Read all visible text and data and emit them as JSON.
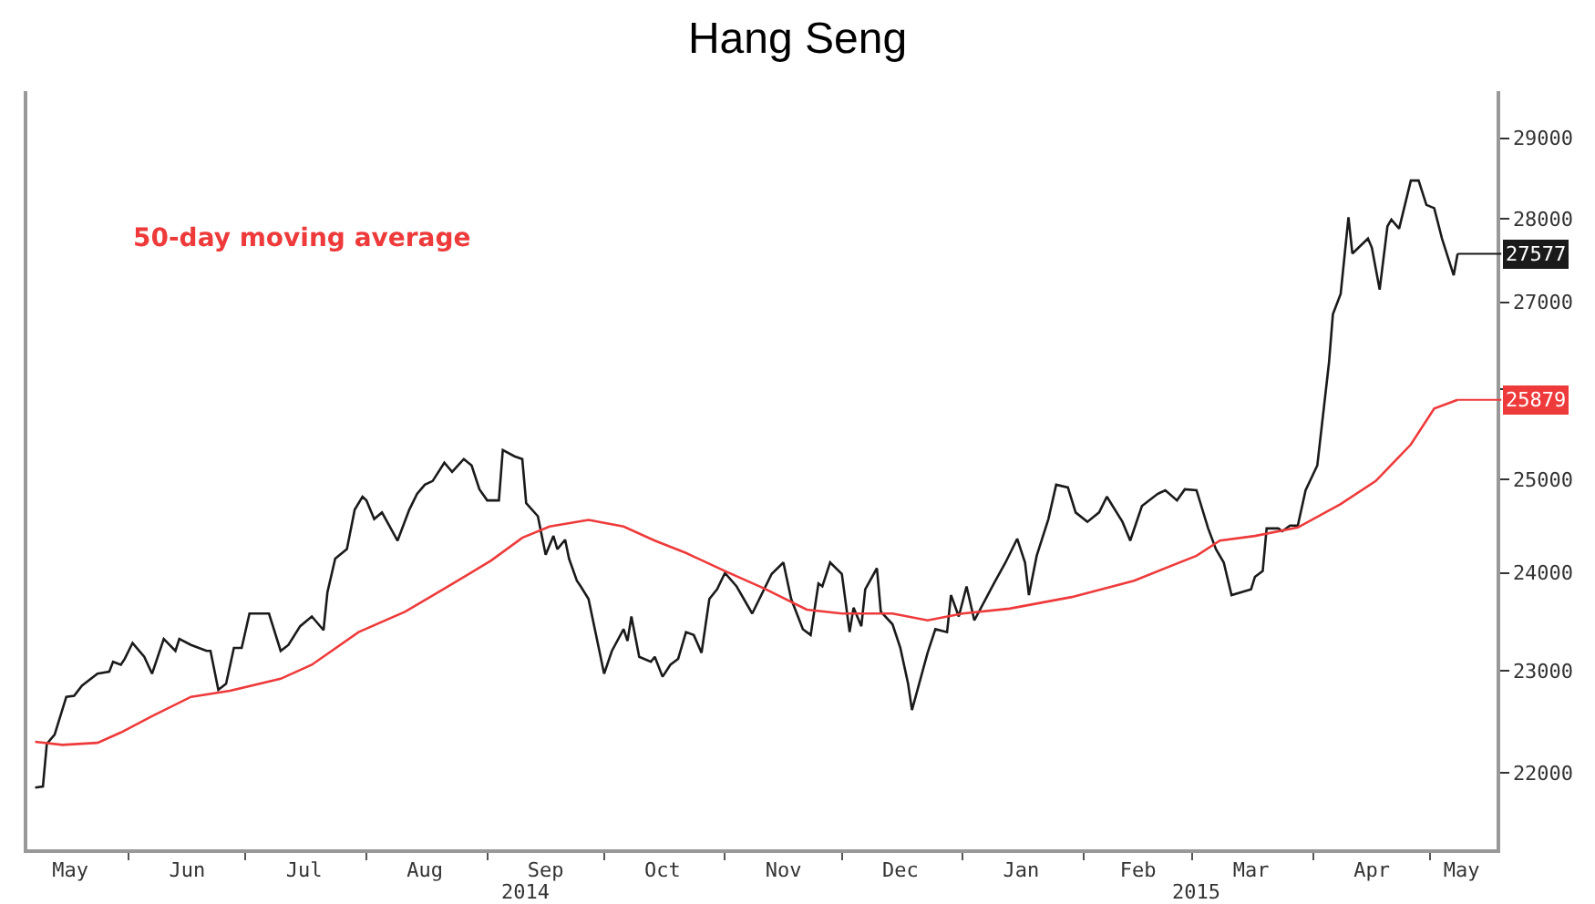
{
  "chart_data": {
    "type": "line",
    "title": "Hang Seng",
    "log": true,
    "legend": false,
    "line_style": "solid",
    "marker": "none",
    "xlim": [
      "2014-05-06",
      "2015-05-18"
    ],
    "ylim": [
      21280,
      29600
    ],
    "yticks": [
      22000,
      23000,
      24000,
      25000,
      {
        "value": 26000,
        "label": null
      },
      27000,
      28000,
      29000
    ],
    "xticks": [
      {
        "value": "2014-05-17",
        "label": "May"
      },
      {
        "value": "2014-06-16",
        "label": "Jun"
      },
      {
        "value": "2014-07-16",
        "label": "Jul"
      },
      {
        "value": "2014-08-16",
        "label": "Aug"
      },
      {
        "value": "2014-09-16",
        "label": "Sep"
      },
      {
        "value": "2014-10-16",
        "label": "Oct"
      },
      {
        "value": "2014-11-16",
        "label": "Nov"
      },
      {
        "value": "2014-12-16",
        "label": "Dec"
      },
      {
        "value": "2015-01-16",
        "label": "Jan"
      },
      {
        "value": "2015-02-15",
        "label": "Feb"
      },
      {
        "value": "2015-03-16",
        "label": "Mar"
      },
      {
        "value": "2015-04-16",
        "label": "Apr"
      },
      {
        "value": "2015-05-09",
        "label": "May"
      },
      {
        "value": "2014-06-01",
        "label": null
      },
      {
        "value": "2014-07-01",
        "label": null
      },
      {
        "value": "2014-08-01",
        "label": null
      },
      {
        "value": "2014-09-01",
        "label": null
      },
      {
        "value": "2014-10-01",
        "label": null
      },
      {
        "value": "2014-11-01",
        "label": null
      },
      {
        "value": "2014-12-01",
        "label": null
      },
      {
        "value": "2015-01-01",
        "label": null
      },
      {
        "value": "2015-02-01",
        "label": null
      },
      {
        "value": "2015-03-01",
        "label": null
      },
      {
        "value": "2015-04-01",
        "label": null
      },
      {
        "value": "2015-05-01",
        "label": null
      }
    ],
    "annotations": [
      "2014",
      "2015",
      {
        "text": "27577",
        "x": "2015-05-08",
        "y": 27577
      },
      {
        "text": "25879",
        "x": "2015-05-08",
        "y": 25879
      }
    ],
    "series": [
      {
        "color": "#1a1a1a",
        "x": [
          "2014-05-08",
          "2014-05-10",
          "2014-05-11",
          "2014-05-13",
          "2014-05-16",
          "2014-05-18",
          "2014-05-20",
          "2014-05-24",
          "2014-05-27",
          "2014-05-28",
          "2014-05-30",
          "2014-05-31",
          "2014-06-02",
          "2014-06-05",
          "2014-06-07",
          "2014-06-10",
          "2014-06-13",
          "2014-06-14",
          "2014-06-17",
          "2014-06-21",
          "2014-06-22",
          "2014-06-24",
          "2014-06-26",
          "2014-06-28",
          "2014-06-30",
          "2014-07-02",
          "2014-07-07",
          "2014-07-10",
          "2014-07-12",
          "2014-07-15",
          "2014-07-18",
          "2014-07-21",
          "2014-07-22",
          "2014-07-24",
          "2014-07-27",
          "2014-07-29",
          "2014-07-31",
          "2014-08-01",
          "2014-08-03",
          "2014-08-05",
          "2014-08-09",
          "2014-08-12",
          "2014-08-14",
          "2014-08-16",
          "2014-08-18",
          "2014-08-21",
          "2014-08-23",
          "2014-08-26",
          "2014-08-28",
          "2014-08-30",
          "2014-09-01",
          "2014-09-04",
          "2014-09-05",
          "2014-09-08",
          "2014-09-10",
          "2014-09-11",
          "2014-09-14",
          "2014-09-16",
          "2014-09-18",
          "2014-09-19",
          "2014-09-21",
          "2014-09-22",
          "2014-09-24",
          "2014-09-25",
          "2014-09-27",
          "2014-10-01",
          "2014-10-03",
          "2014-10-06",
          "2014-10-07",
          "2014-10-08",
          "2014-10-10",
          "2014-10-13",
          "2014-10-14",
          "2014-10-16",
          "2014-10-18",
          "2014-10-20",
          "2014-10-22",
          "2014-10-24",
          "2014-10-26",
          "2014-10-28",
          "2014-10-30",
          "2014-11-01",
          "2014-11-04",
          "2014-11-08",
          "2014-11-13",
          "2014-11-16",
          "2014-11-18",
          "2014-11-21",
          "2014-11-23",
          "2014-11-25",
          "2014-11-26",
          "2014-11-28",
          "2014-12-01",
          "2014-12-03",
          "2014-12-04",
          "2014-12-06",
          "2014-12-07",
          "2014-12-10",
          "2014-12-11",
          "2014-12-14",
          "2014-12-16",
          "2014-12-18",
          "2014-12-19",
          "2014-12-23",
          "2014-12-25",
          "2014-12-28",
          "2014-12-29",
          "2014-12-31",
          "2015-01-02",
          "2015-01-04",
          "2015-01-09",
          "2015-01-12",
          "2015-01-15",
          "2015-01-17",
          "2015-01-18",
          "2015-01-20",
          "2015-01-23",
          "2015-01-25",
          "2015-01-28",
          "2015-01-30",
          "2015-02-02",
          "2015-02-05",
          "2015-02-07",
          "2015-02-11",
          "2015-02-13",
          "2015-02-16",
          "2015-02-20",
          "2015-02-22",
          "2015-02-25",
          "2015-02-27",
          "2015-03-02",
          "2015-03-05",
          "2015-03-07",
          "2015-03-09",
          "2015-03-11",
          "2015-03-16",
          "2015-03-17",
          "2015-03-19",
          "2015-03-20",
          "2015-03-23",
          "2015-03-24",
          "2015-03-26",
          "2015-03-28",
          "2015-03-30",
          "2015-04-02",
          "2015-04-05",
          "2015-04-06",
          "2015-04-08",
          "2015-04-10",
          "2015-04-11",
          "2015-04-15",
          "2015-04-16",
          "2015-04-18",
          "2015-04-20",
          "2015-04-21",
          "2015-04-23",
          "2015-04-26",
          "2015-04-28",
          "2015-04-30",
          "2015-05-02",
          "2015-05-04",
          "2015-05-07",
          "2015-05-08"
        ],
        "values": [
          21860,
          21870,
          22280,
          22370,
          22740,
          22750,
          22850,
          22970,
          22990,
          23090,
          23060,
          23120,
          23280,
          23140,
          22970,
          23320,
          23200,
          23320,
          23260,
          23200,
          23200,
          22810,
          22870,
          23230,
          23230,
          23580,
          23580,
          23200,
          23260,
          23450,
          23550,
          23410,
          23800,
          24150,
          24250,
          24670,
          24810,
          24770,
          24570,
          24640,
          24340,
          24670,
          24840,
          24940,
          24980,
          25180,
          25080,
          25220,
          25150,
          24890,
          24770,
          24770,
          25320,
          25250,
          25220,
          24740,
          24600,
          24190,
          24390,
          24250,
          24350,
          24150,
          23920,
          23860,
          23730,
          22970,
          23200,
          23420,
          23300,
          23550,
          23140,
          23090,
          23140,
          22940,
          23060,
          23120,
          23390,
          23360,
          23180,
          23730,
          23830,
          24000,
          23860,
          23580,
          23990,
          24110,
          23730,
          23420,
          23360,
          23890,
          23860,
          24110,
          23990,
          23390,
          23640,
          23450,
          23830,
          24050,
          23600,
          23470,
          23230,
          22870,
          22610,
          23180,
          23420,
          23390,
          23770,
          23550,
          23860,
          23510,
          23890,
          24110,
          24360,
          24110,
          23770,
          24180,
          24570,
          24940,
          24910,
          24640,
          24540,
          24640,
          24810,
          24540,
          24340,
          24710,
          24840,
          24880,
          24770,
          24890,
          24880,
          24470,
          24250,
          24110,
          23770,
          23830,
          23960,
          24020,
          24470,
          24470,
          24440,
          24500,
          24500,
          24880,
          25150,
          26300,
          26860,
          27100,
          28020,
          27580,
          27760,
          27650,
          27150,
          27910,
          27990,
          27880,
          28470,
          28470,
          28170,
          28130,
          27760,
          27320,
          27577
        ]
      },
      {
        "name": "50-day moving average",
        "color": "#ee3a3a",
        "x": [
          "2014-05-08",
          "2014-05-15",
          "2014-05-24",
          "2014-05-30",
          "2014-06-07",
          "2014-06-17",
          "2014-06-27",
          "2014-07-10",
          "2014-07-18",
          "2014-07-30",
          "2014-08-11",
          "2014-08-22",
          "2014-09-02",
          "2014-09-10",
          "2014-09-17",
          "2014-09-27",
          "2014-10-06",
          "2014-10-14",
          "2014-10-22",
          "2014-11-01",
          "2014-11-11",
          "2014-11-22",
          "2014-12-01",
          "2014-12-14",
          "2014-12-23",
          "2015-01-01",
          "2015-01-13",
          "2015-01-29",
          "2015-02-14",
          "2015-03-02",
          "2015-03-08",
          "2015-03-17",
          "2015-03-28",
          "2015-04-08",
          "2015-04-17",
          "2015-04-26",
          "2015-05-02",
          "2015-05-08"
        ],
        "values": [
          22300,
          22270,
          22290,
          22390,
          22550,
          22740,
          22800,
          22920,
          23060,
          23390,
          23600,
          23860,
          24130,
          24370,
          24490,
          24560,
          24490,
          24340,
          24210,
          24020,
          23840,
          23620,
          23580,
          23580,
          23510,
          23580,
          23630,
          23750,
          23920,
          24180,
          24340,
          24390,
          24480,
          24730,
          24980,
          25380,
          25780,
          25879
        ]
      }
    ]
  }
}
